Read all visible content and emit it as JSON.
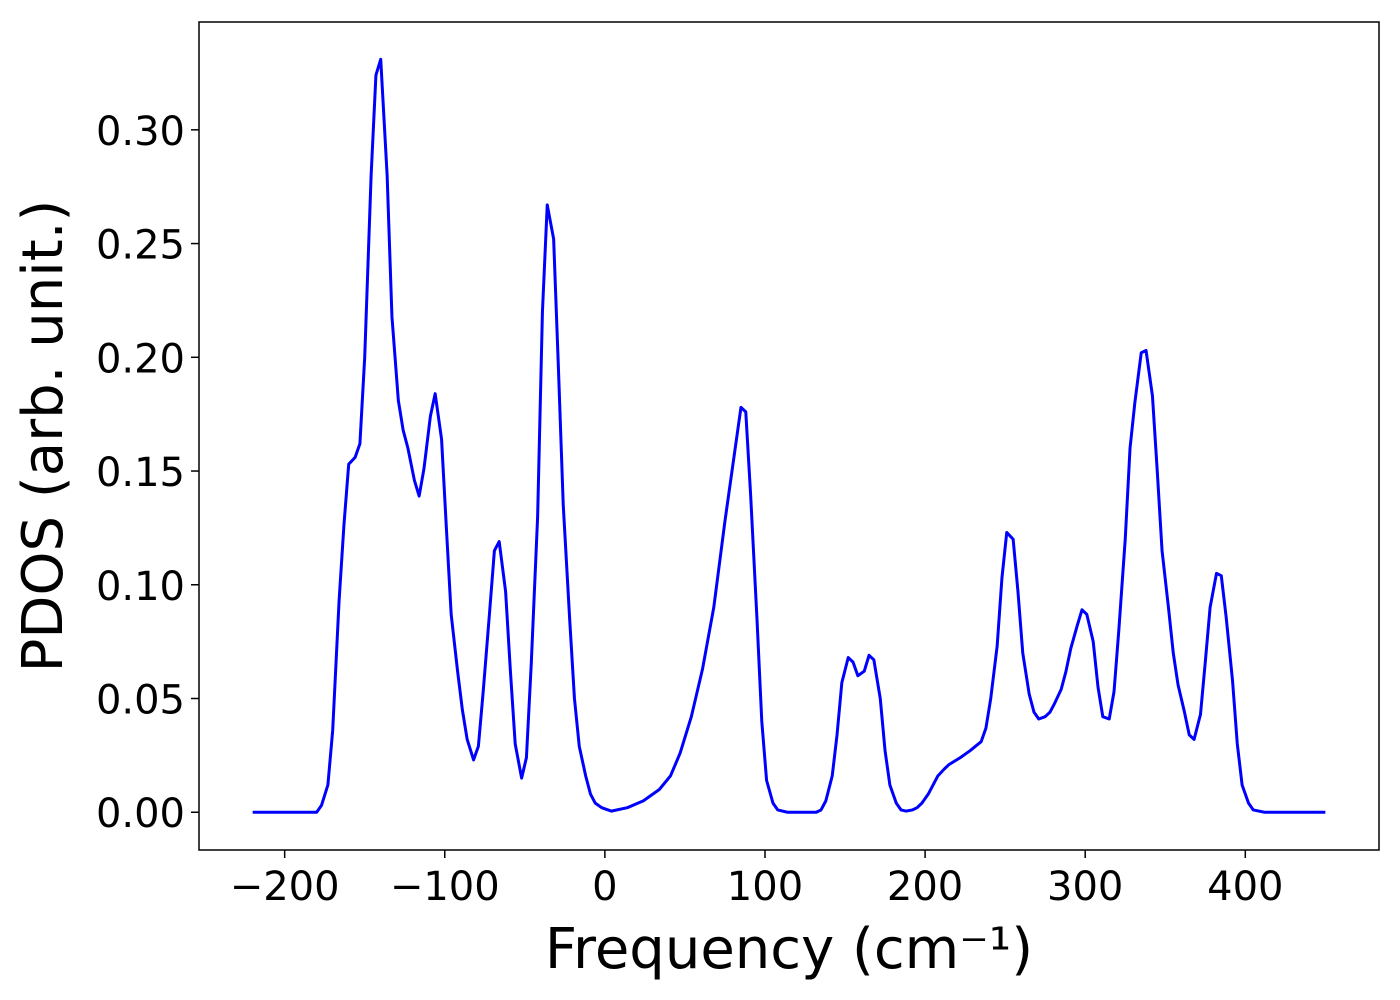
{
  "chart_data": {
    "type": "line",
    "xlabel": "Frequency (cm⁻¹)",
    "ylabel": "PDOS (arb. unit.)",
    "color": "#0000ff",
    "xlim": [
      -253.5,
      483.5
    ],
    "ylim": [
      -0.0166,
      0.3474
    ],
    "xticks": [
      {
        "value": -200,
        "label": "−200"
      },
      {
        "value": -100,
        "label": "−100"
      },
      0,
      100,
      200,
      300,
      400
    ],
    "yticks": [
      {
        "value": 0,
        "label": "0.00"
      },
      {
        "value": 0.05,
        "label": "0.05"
      },
      {
        "value": 0.1,
        "label": "0.10"
      },
      {
        "value": 0.15,
        "label": "0.15"
      },
      {
        "value": 0.2,
        "label": "0.20"
      },
      {
        "value": 0.25,
        "label": "0.25"
      },
      {
        "value": 0.3,
        "label": "0.30"
      }
    ],
    "x": [
      -220,
      -180,
      -177,
      -173,
      -170,
      -166,
      -163,
      -160,
      -156,
      -153,
      -150,
      -146,
      -143,
      -140,
      -136,
      -133,
      -129,
      -126,
      -123,
      -119,
      -116,
      -113,
      -109,
      -106,
      -102,
      -99,
      -96,
      -92,
      -89,
      -86,
      -82,
      -79,
      -76,
      -72,
      -69,
      -66,
      -62,
      -59,
      -56,
      -52,
      -49,
      -46,
      -42,
      -39,
      -36,
      -32,
      -29,
      -26,
      -22,
      -19,
      -16,
      -12,
      -9,
      -6,
      -2,
      4,
      14,
      24,
      34,
      41,
      47,
      54,
      61,
      68,
      75,
      81,
      85,
      88,
      91,
      95,
      98,
      101,
      105,
      108,
      114,
      132,
      135,
      138,
      142,
      145,
      148,
      152,
      155,
      158,
      162,
      165,
      168,
      172,
      175,
      178,
      182,
      185,
      188,
      192,
      195,
      198,
      202,
      205,
      208,
      212,
      215,
      222,
      228,
      235,
      238,
      241,
      245,
      248,
      251,
      255,
      258,
      261,
      265,
      268,
      271,
      275,
      278,
      281,
      285,
      288,
      291,
      295,
      298,
      301,
      305,
      308,
      311,
      315,
      318,
      321,
      325,
      328,
      331,
      335,
      338,
      342,
      345,
      348,
      352,
      355,
      358,
      362,
      365,
      368,
      372,
      375,
      378,
      382,
      385,
      388,
      392,
      395,
      398,
      402,
      405,
      412,
      450
    ],
    "values": [
      0,
      0,
      0.003,
      0.012,
      0.036,
      0.093,
      0.126,
      0.153,
      0.156,
      0.162,
      0.2,
      0.28,
      0.324,
      0.331,
      0.28,
      0.218,
      0.181,
      0.168,
      0.16,
      0.146,
      0.139,
      0.151,
      0.174,
      0.184,
      0.164,
      0.125,
      0.087,
      0.062,
      0.045,
      0.032,
      0.023,
      0.029,
      0.053,
      0.088,
      0.115,
      0.119,
      0.097,
      0.062,
      0.03,
      0.015,
      0.024,
      0.065,
      0.13,
      0.22,
      0.267,
      0.252,
      0.195,
      0.135,
      0.085,
      0.05,
      0.029,
      0.016,
      0.008,
      0.004,
      0.002,
      0.0005,
      0.002,
      0.005,
      0.01,
      0.016,
      0.026,
      0.042,
      0.063,
      0.09,
      0.128,
      0.158,
      0.178,
      0.176,
      0.14,
      0.085,
      0.04,
      0.014,
      0.004,
      0.001,
      0,
      0,
      0.001,
      0.005,
      0.016,
      0.034,
      0.057,
      0.068,
      0.066,
      0.06,
      0.062,
      0.069,
      0.067,
      0.05,
      0.027,
      0.012,
      0.004,
      0.001,
      0.0005,
      0.001,
      0.002,
      0.004,
      0.008,
      0.012,
      0.016,
      0.019,
      0.021,
      0.024,
      0.027,
      0.031,
      0.037,
      0.05,
      0.073,
      0.103,
      0.123,
      0.12,
      0.097,
      0.07,
      0.052,
      0.044,
      0.041,
      0.042,
      0.044,
      0.048,
      0.054,
      0.062,
      0.072,
      0.082,
      0.089,
      0.087,
      0.075,
      0.055,
      0.042,
      0.041,
      0.053,
      0.08,
      0.12,
      0.16,
      0.18,
      0.202,
      0.203,
      0.183,
      0.15,
      0.115,
      0.09,
      0.07,
      0.056,
      0.044,
      0.034,
      0.032,
      0.043,
      0.066,
      0.09,
      0.105,
      0.104,
      0.086,
      0.058,
      0.03,
      0.012,
      0.004,
      0.001,
      0,
      0
    ]
  }
}
